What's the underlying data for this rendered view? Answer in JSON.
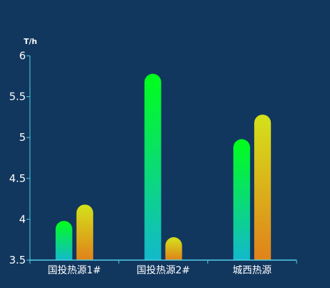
{
  "chart_data": {
    "type": "bar",
    "ylabel": "T/h",
    "categories": [
      "国投热源1#",
      "国投热源2#",
      "城西热源"
    ],
    "series": [
      {
        "values": [
          3.98,
          5.78,
          4.98
        ],
        "colors": {
          "top": "#00ff1a",
          "bottom": "#13b9cc"
        }
      },
      {
        "values": [
          4.18,
          3.78,
          5.28
        ],
        "colors": {
          "top": "#d4e21a",
          "bottom": "#e0821a"
        }
      }
    ],
    "ylim": [
      3.5,
      6
    ],
    "yticks": [
      "3.5",
      "4",
      "4.5",
      "5",
      "5.5",
      "6"
    ],
    "grid": false,
    "legend": "none"
  },
  "colors": {
    "background": "#12375e",
    "axis": "#4fd4e8",
    "text": "#ffffff"
  }
}
